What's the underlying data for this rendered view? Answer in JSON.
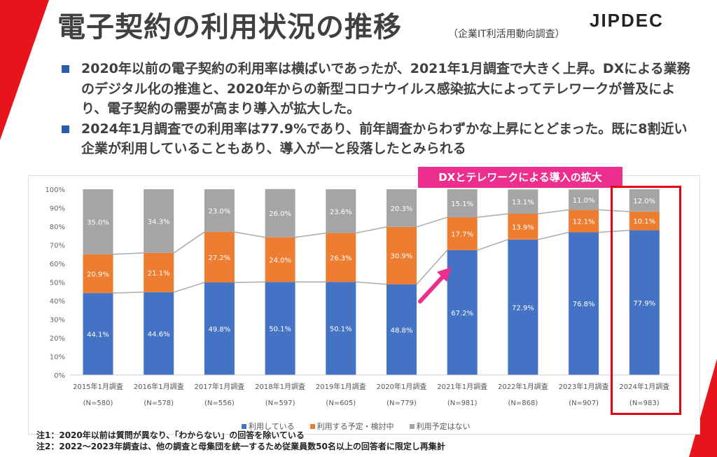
{
  "title": "電子契約の利用状況の推移",
  "subtitle": "（企業IT利活用動向調査）",
  "logo": "JIPDEC",
  "bullets": [
    "2020年以前の電子契約の利用率は横ばいであったが、2021年1月調査で大きく上昇。DXによる業務のデジタル化の推進と、2020年からの新型コロナウイルス感染拡大によってテレワークが普及により、電子契約の需要が高まり導入が拡大した。",
    "2024年1月調査での利用率は77.9%であり、前年調査からわずかな上昇にとどまった。既に8割近い企業が利用していることもあり、導入が一と段落したとみられる"
  ],
  "banner": "DXとテレワークによる導入の拡大",
  "chart_data": {
    "type": "bar",
    "stacked": true,
    "categories": [
      "2015年1月調査",
      "2016年1月調査",
      "2017年1月調査",
      "2018年1月調査",
      "2019年1月調査",
      "2020年1月調査",
      "2021年1月調査",
      "2022年1月調査",
      "2023年1月調査",
      "2024年1月調査"
    ],
    "sample_sizes": [
      "(N=580)",
      "(N=578)",
      "(N=556)",
      "(N=597)",
      "(N=605)",
      "(N=779)",
      "(N=981)",
      "(N=868)",
      "(N=907)",
      "(N=983)"
    ],
    "series": [
      {
        "name": "利用している",
        "color": "#4472c4",
        "values": [
          44.1,
          44.6,
          49.8,
          50.1,
          50.1,
          48.8,
          67.2,
          72.9,
          76.8,
          77.9
        ]
      },
      {
        "name": "利用する予定・検討中",
        "color": "#ed7d31",
        "values": [
          20.9,
          21.1,
          27.2,
          24.0,
          26.3,
          30.9,
          17.7,
          13.9,
          12.1,
          10.1
        ]
      },
      {
        "name": "利用予定はない",
        "color": "#a5a5a5",
        "values": [
          35.0,
          34.3,
          23.0,
          26.0,
          23.6,
          20.3,
          15.1,
          13.1,
          11.0,
          12.0
        ]
      }
    ],
    "yticks": [
      "0%",
      "10%",
      "20%",
      "30%",
      "40%",
      "50%",
      "60%",
      "70%",
      "80%",
      "90%",
      "100%"
    ],
    "ylim": [
      0,
      100
    ],
    "legend": "bottom",
    "grid": false
  },
  "notes": [
    "注1：2020年以前は質問が異なり、「わからない」の回答を除いている",
    "注2：2022～2023年調査は、他の調査と母集団を統一するため従業員数50名以上の回答者に限定し再集計"
  ]
}
